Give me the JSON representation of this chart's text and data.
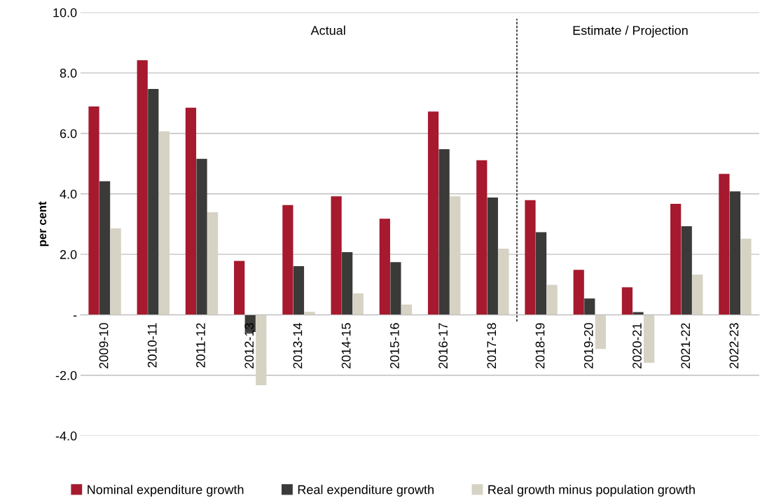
{
  "chart_data": {
    "type": "bar",
    "ylabel": "per cent",
    "categories": [
      "2009-10",
      "2010-11",
      "2011-12",
      "2012-13",
      "2013-14",
      "2014-15",
      "2015-16",
      "2016-17",
      "2017-18",
      "2018-19",
      "2019-20",
      "2020-21",
      "2021-22",
      "2022-23"
    ],
    "series": [
      {
        "name": "Nominal expenditure growth",
        "color": "#a6192e",
        "values": [
          6.89,
          8.42,
          6.85,
          1.78,
          3.63,
          3.92,
          3.18,
          6.72,
          5.11,
          3.79,
          1.49,
          0.91,
          3.67,
          4.66
        ]
      },
      {
        "name": "Real expenditure growth",
        "color": "#3a3b38",
        "values": [
          4.42,
          7.47,
          5.16,
          -0.57,
          1.61,
          2.07,
          1.74,
          5.48,
          3.88,
          2.73,
          0.54,
          0.09,
          2.93,
          4.08
        ]
      },
      {
        "name": "Real growth minus population growth",
        "color": "#d6d2c4",
        "values": [
          2.86,
          6.07,
          3.39,
          -2.33,
          0.1,
          0.71,
          0.34,
          3.92,
          2.19,
          0.99,
          -1.13,
          -1.59,
          1.33,
          2.52
        ]
      }
    ],
    "ylim": [
      -4,
      10
    ],
    "yticks": [
      {
        "value": -4,
        "label": "-4.0"
      },
      {
        "value": -2,
        "label": "-2.0"
      },
      {
        "value": 0,
        "label": "-"
      },
      {
        "value": 2,
        "label": "2.0"
      },
      {
        "value": 4,
        "label": "4.0"
      },
      {
        "value": 6,
        "label": "6.0"
      },
      {
        "value": 8,
        "label": "8.0"
      },
      {
        "value": 10,
        "label": "10.0"
      }
    ],
    "grid": "y",
    "legend": "bottom",
    "annotations": [
      "Actual",
      "Estimate / Projection"
    ]
  }
}
